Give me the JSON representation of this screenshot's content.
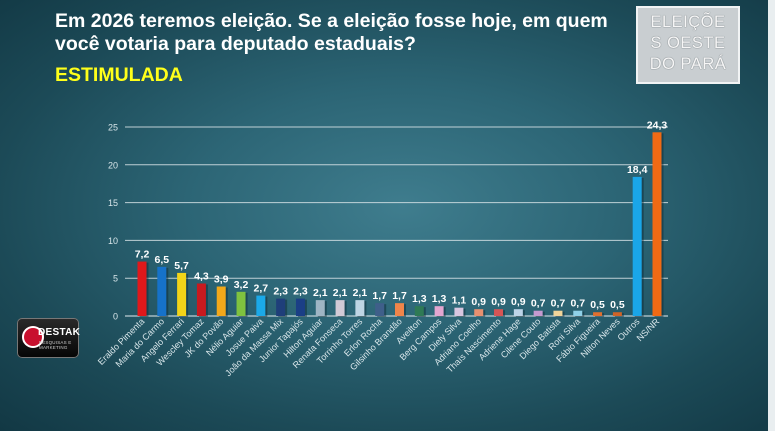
{
  "header": {
    "title": "Em 2026 teremos eleição. Se a eleição fosse hoje, em quem você votaria para deputado estaduais?",
    "subtitle": "ESTIMULADA"
  },
  "badge": {
    "lines": [
      "ELEIÇÕE",
      "S OESTE",
      "DO PARÁ"
    ]
  },
  "logo": {
    "name": "DESTAK",
    "tagline": "PESQUISAS E MARKETING",
    "icon": "destak-logo-mark"
  },
  "colors": {
    "axis_text": "#d8e6ea",
    "gridline": "#d9e4e8",
    "value_label": "#ffffff"
  },
  "chart_data": {
    "type": "bar",
    "title": "",
    "xlabel": "",
    "ylabel": "",
    "ylim": [
      0,
      25
    ],
    "yticks": [
      0,
      5,
      10,
      15,
      20,
      25
    ],
    "grid": true,
    "categories": [
      "Eraldo Pimenta",
      "Maria do Carmo",
      "Angelo Ferrari",
      "Wescley Tomaz",
      "JK do Povão",
      "Nélio Aguiar",
      "Josue Paiva",
      "João da Massa Mix",
      "Junior Tapajós",
      "Hilton Aguiar",
      "Renata Fonseca",
      "Torrinho Torres",
      "Erlon Rocha",
      "Gilsinho Brandão",
      "Aveilton",
      "Berg Campos",
      "Diely Silva",
      "Adriano Coelho",
      "Thaís Nascimento",
      "Adriene Hage",
      "Cilene Couto",
      "Diego Batista",
      "Roni Silva",
      "Fábio Figueira",
      "Nilton Neves",
      "Outros",
      "NS/NR"
    ],
    "values": [
      7.2,
      6.5,
      5.7,
      4.3,
      3.9,
      3.2,
      2.7,
      2.3,
      2.3,
      2.1,
      2.1,
      2.1,
      1.7,
      1.7,
      1.3,
      1.3,
      1.1,
      0.9,
      0.9,
      0.9,
      0.7,
      0.7,
      0.7,
      0.5,
      0.5,
      18.4,
      24.3
    ],
    "value_labels": [
      "7,2",
      "6,5",
      "5,7",
      "4,3",
      "3,9",
      "3,2",
      "2,7",
      "2,3",
      "2,3",
      "2,1",
      "2,1",
      "2,1",
      "1,7",
      "1,7",
      "1,3",
      "1,3",
      "1,1",
      "0,9",
      "0,9",
      "0,9",
      "0,7",
      "0,7",
      "0,7",
      "0,5",
      "0,5",
      "18,4",
      "24,3"
    ],
    "bar_colors": [
      "#e0181b",
      "#1672c9",
      "#f2d418",
      "#c81a1f",
      "#f2a81a",
      "#7fc23f",
      "#1ba9e8",
      "#1f3f7a",
      "#1b3f86",
      "#9fb5c4",
      "#d2cad6",
      "#bfd5e4",
      "#3f5f8a",
      "#f0854a",
      "#2f7a55",
      "#e3a6d0",
      "#d8c6e0",
      "#e89070",
      "#d75555",
      "#bcd4e8",
      "#c59ad0",
      "#f0d49a",
      "#8fd0e8",
      "#e07030",
      "#d06428",
      "#1aa6e8",
      "#f06a14"
    ]
  }
}
